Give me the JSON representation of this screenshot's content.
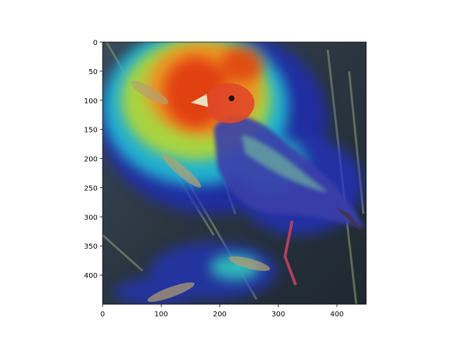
{
  "chart_data": {
    "type": "heatmap",
    "title": "",
    "xlabel": "",
    "ylabel": "",
    "xlim": [
      0,
      450
    ],
    "ylim": [
      450,
      0
    ],
    "x_ticks": [
      0,
      100,
      200,
      300,
      400
    ],
    "y_ticks": [
      0,
      50,
      100,
      150,
      200,
      250,
      300,
      350,
      400
    ],
    "image_content": "bird perched on grass stalk",
    "overlay_colormap": "jet",
    "grid": false
  }
}
